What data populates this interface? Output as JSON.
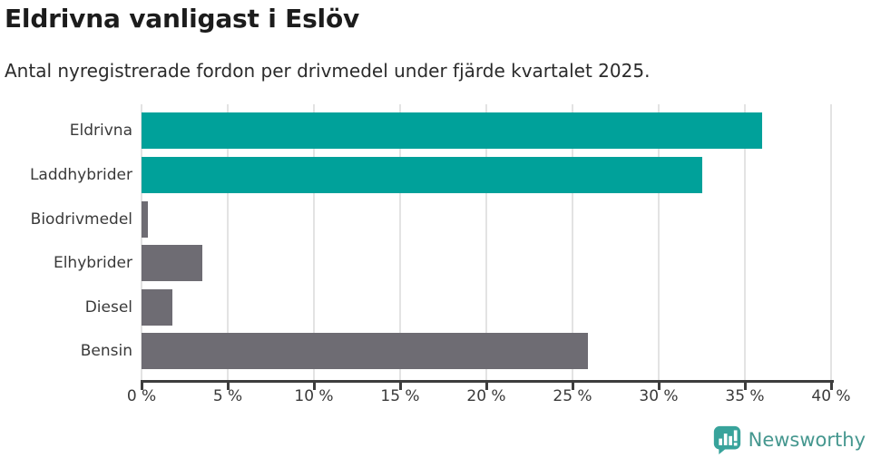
{
  "header": {
    "title": "Eldrivna vanligast i Eslöv",
    "subtitle": "Antal nyregistrerade fordon per drivmedel under fjärde kvartalet 2025."
  },
  "chart_data": {
    "type": "bar",
    "orientation": "horizontal",
    "title": "Eldrivna vanligast i Eslöv",
    "subtitle": "Antal nyregistrerade fordon per drivmedel under fjärde kvartalet 2025.",
    "categories": [
      "Eldrivna",
      "Laddhybrider",
      "Biodrivmedel",
      "Elhybrider",
      "Diesel",
      "Bensin"
    ],
    "values": [
      36.0,
      32.5,
      0.35,
      3.5,
      1.8,
      25.9
    ],
    "unit": "%",
    "bar_colors": [
      "#00a19a",
      "#00a19a",
      "#6e6c73",
      "#6e6c73",
      "#6e6c73",
      "#6e6c73"
    ],
    "xlim": [
      0,
      40
    ],
    "x_ticks": [
      0,
      5,
      10,
      15,
      20,
      25,
      30,
      35,
      40
    ],
    "x_tick_labels": [
      "0 %",
      "5 %",
      "10 %",
      "15 %",
      "20 %",
      "25 %",
      "30 %",
      "35 %",
      "40 %"
    ],
    "grid": "vertical",
    "legend": false
  },
  "colors": {
    "accent_teal": "#00a19a",
    "muted_gray": "#6e6c73",
    "gridline": "#e3e3e3",
    "axis": "#3d3d3d",
    "logo_icon": "#38a39b",
    "logo_text": "#45978f"
  },
  "footer": {
    "brand": "Newsworthy"
  },
  "icons": {
    "logo": "newsworthy-speech-bubble-barchart-icon"
  }
}
